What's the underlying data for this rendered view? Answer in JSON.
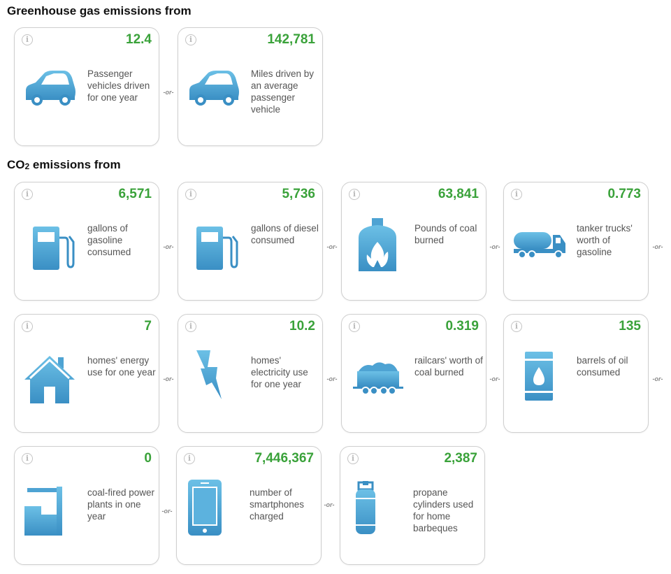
{
  "sections": [
    {
      "title_prefix": "Greenhouse gas emissions from",
      "title_sub": ""
    },
    {
      "title_prefix": "CO",
      "title_sub": "2",
      "title_suffix": " emissions from"
    }
  ],
  "or_label": "-or-",
  "info_glyph": "i",
  "colors": {
    "value_green": "#3aa23a",
    "icon_blue": "#4ea3d3",
    "border": "#cfcfcf"
  },
  "cards": {
    "vehicles": {
      "value": "12.4",
      "desc": "Passenger vehicles driven for one year",
      "icon": "car-icon"
    },
    "miles": {
      "value": "142,781",
      "desc": "Miles driven by an average passenger vehicle",
      "icon": "car-icon"
    },
    "gasoline": {
      "value": "6,571",
      "desc": "gallons of gasoline consumed",
      "icon": "fuel-pump-icon"
    },
    "diesel": {
      "value": "5,736",
      "desc": "gallons of diesel consumed",
      "icon": "fuel-pump-icon"
    },
    "coal_pounds": {
      "value": "63,841",
      "desc": "Pounds of coal burned",
      "icon": "coal-furnace-icon"
    },
    "tanker": {
      "value": "0.773",
      "desc": "tanker trucks' worth of gasoline",
      "icon": "tanker-truck-icon"
    },
    "homes_energy": {
      "value": "7",
      "desc": "homes' energy use for one year",
      "icon": "house-icon"
    },
    "homes_elec": {
      "value": "10.2",
      "desc": "homes' electricity use for one year",
      "icon": "lightning-bolt-icon"
    },
    "railcars": {
      "value": "0.319",
      "desc": "railcars' worth of coal burned",
      "icon": "coal-railcar-icon"
    },
    "barrels": {
      "value": "135",
      "desc": "barrels of oil consumed",
      "icon": "oil-barrel-icon"
    },
    "power_plants": {
      "value": "0",
      "desc": "coal-fired power plants in one year",
      "icon": "power-plant-icon"
    },
    "smartphones": {
      "value": "7,446,367",
      "desc": "number of smartphones charged",
      "icon": "smartphone-icon"
    },
    "propane": {
      "value": "2,387",
      "desc": "propane cylinders used for home barbeques",
      "icon": "propane-cylinder-icon"
    }
  }
}
